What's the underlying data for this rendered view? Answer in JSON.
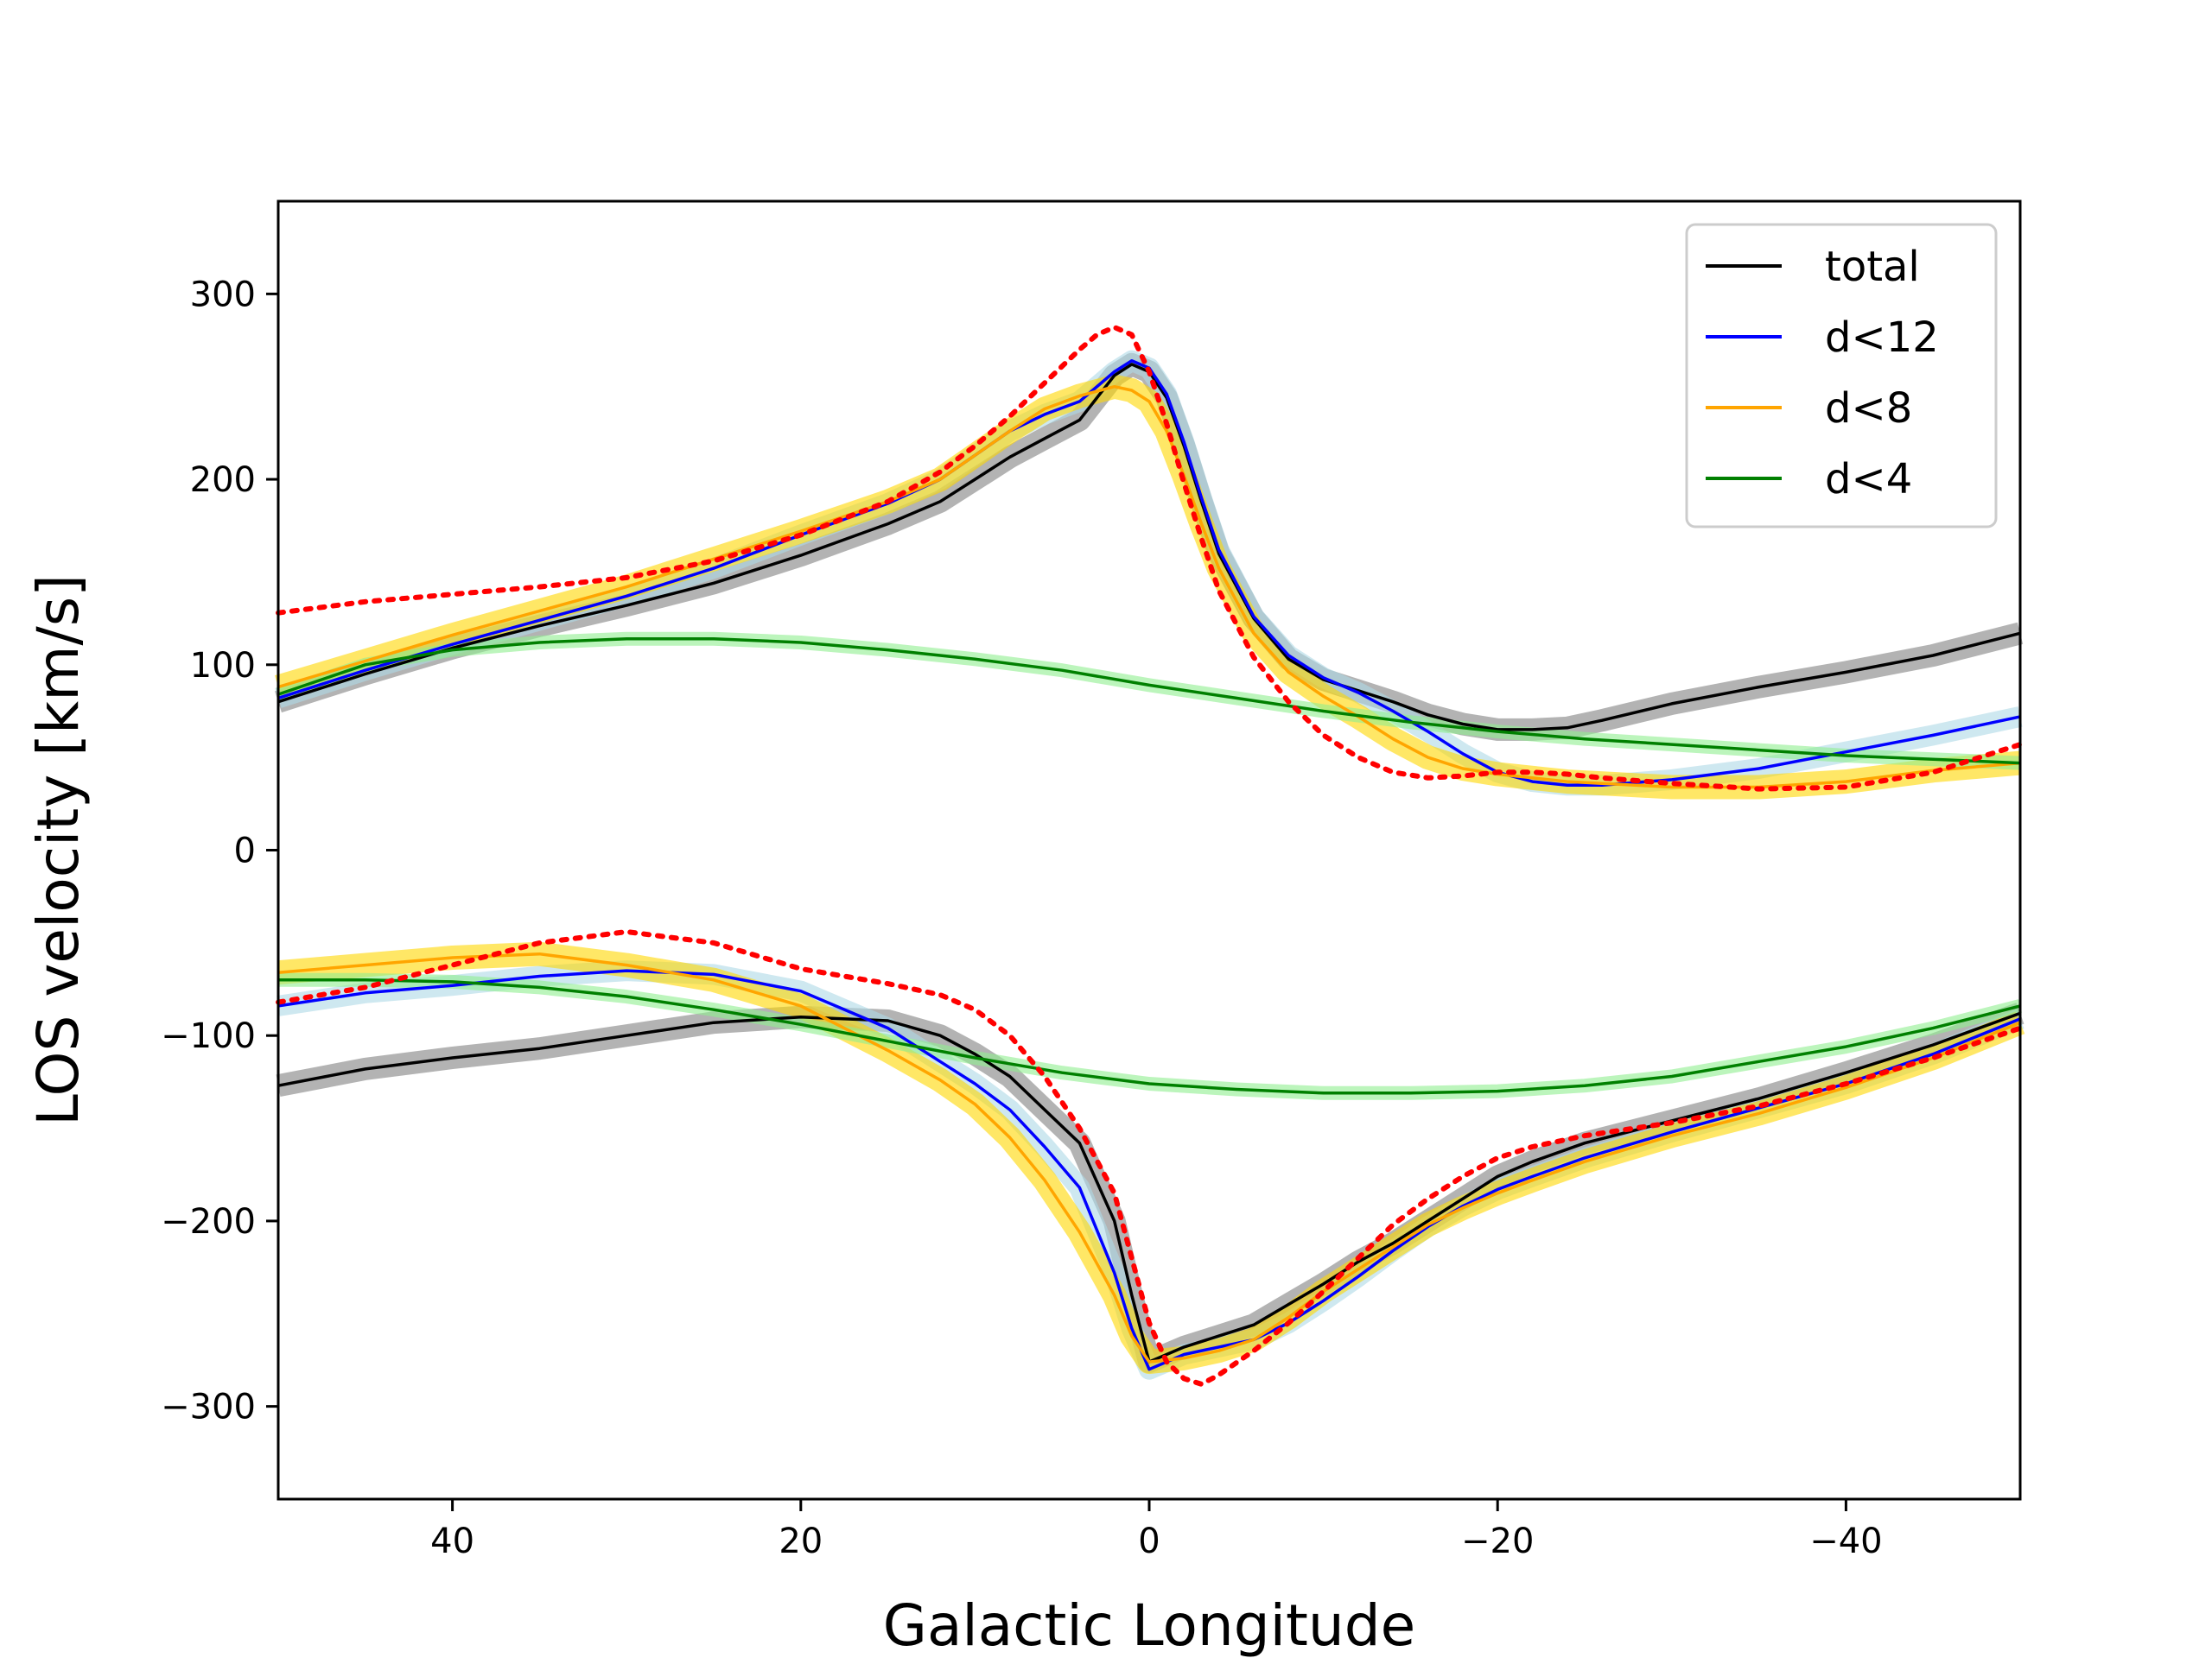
{
  "chart_data": {
    "type": "line",
    "title": "",
    "xlabel": "Galactic Longitude",
    "ylabel": "LOS velocity [km/s]",
    "xlim": [
      50,
      -50
    ],
    "ylim": [
      -350,
      350
    ],
    "x_ticks": [
      40,
      20,
      0,
      -20,
      -40
    ],
    "y_ticks": [
      300,
      200,
      100,
      0,
      -100,
      -200,
      -300
    ],
    "x_tick_labels": [
      "40",
      "20",
      "0",
      "−20",
      "−40"
    ],
    "y_tick_labels": [
      "300",
      "200",
      "100",
      "0",
      "−100",
      "−200",
      "−300"
    ],
    "grid": false,
    "legend_position": "top-right",
    "legend": [
      "total",
      "d<12",
      "d<8",
      "d<4"
    ],
    "series": [
      {
        "name": "total",
        "color": "#000000",
        "band_color": "#808080",
        "upper": {
          "x": [
            50,
            45,
            40,
            35,
            30,
            25,
            20,
            15,
            12,
            10,
            8,
            6,
            4,
            2,
            1,
            0,
            -1,
            -2,
            -3,
            -4,
            -6,
            -8,
            -10,
            -12,
            -14,
            -16,
            -18,
            -20,
            -22,
            -24,
            -26,
            -30,
            -35,
            -40,
            -45,
            -50
          ],
          "y": [
            80,
            95,
            109,
            121,
            132,
            144,
            159,
            176,
            188,
            200,
            212,
            222,
            232,
            256,
            262,
            258,
            244,
            218,
            188,
            160,
            125,
            103,
            92,
            86,
            80,
            73,
            68,
            65,
            65,
            66,
            70,
            79,
            88,
            96,
            105,
            117
          ]
        },
        "lower": {
          "x": [
            50,
            45,
            40,
            35,
            30,
            25,
            20,
            15,
            12,
            10,
            8,
            6,
            4,
            2,
            1,
            0,
            -2,
            -4,
            -6,
            -8,
            -10,
            -12,
            -14,
            -16,
            -18,
            -20,
            -22,
            -25,
            -30,
            -35,
            -40,
            -45,
            -50
          ],
          "y": [
            -127,
            -118,
            -112,
            -107,
            -100,
            -93,
            -90,
            -92,
            -100,
            -110,
            -122,
            -140,
            -158,
            -200,
            -240,
            -276,
            -268,
            -262,
            -256,
            -245,
            -234,
            -222,
            -212,
            -200,
            -188,
            -176,
            -168,
            -158,
            -146,
            -134,
            -120,
            -105,
            -88
          ]
        }
      },
      {
        "name": "d<12",
        "color": "#0000ff",
        "band_color": "#add8e6",
        "upper": {
          "x": [
            50,
            45,
            40,
            35,
            30,
            25,
            20,
            15,
            12,
            10,
            8,
            6,
            4,
            2,
            1,
            0,
            -1,
            -2,
            -3,
            -4,
            -6,
            -8,
            -10,
            -12,
            -14,
            -16,
            -18,
            -20,
            -22,
            -24,
            -26,
            -30,
            -35,
            -40,
            -45,
            -50
          ],
          "y": [
            82,
            97,
            111,
            124,
            137,
            152,
            170,
            187,
            200,
            213,
            226,
            235,
            242,
            258,
            264,
            260,
            246,
            220,
            190,
            162,
            126,
            105,
            93,
            85,
            75,
            64,
            52,
            42,
            37,
            35,
            35,
            38,
            44,
            53,
            62,
            72
          ]
        },
        "lower": {
          "x": [
            50,
            45,
            40,
            35,
            30,
            25,
            20,
            15,
            12,
            10,
            8,
            6,
            4,
            2,
            1,
            0,
            -2,
            -4,
            -6,
            -8,
            -10,
            -12,
            -14,
            -16,
            -18,
            -20,
            -22,
            -25,
            -30,
            -35,
            -40,
            -45,
            -50
          ],
          "y": [
            -84,
            -77,
            -73,
            -68,
            -65,
            -67,
            -76,
            -96,
            -114,
            -126,
            -140,
            -160,
            -182,
            -228,
            -258,
            -280,
            -272,
            -268,
            -264,
            -255,
            -243,
            -230,
            -216,
            -203,
            -192,
            -183,
            -176,
            -166,
            -152,
            -139,
            -126,
            -110,
            -91
          ]
        }
      },
      {
        "name": "d<8",
        "color": "#ffa500",
        "band_color": "#ffd700",
        "upper": {
          "x": [
            50,
            45,
            40,
            35,
            30,
            25,
            20,
            15,
            12,
            10,
            8,
            6,
            4,
            2,
            1,
            0,
            -1,
            -2,
            -3,
            -4,
            -6,
            -8,
            -10,
            -12,
            -14,
            -16,
            -18,
            -20,
            -22,
            -24,
            -26,
            -30,
            -35,
            -40,
            -45,
            -50
          ],
          "y": [
            88,
            102,
            116,
            129,
            142,
            157,
            172,
            188,
            200,
            213,
            226,
            238,
            245,
            250,
            248,
            242,
            226,
            202,
            176,
            152,
            117,
            96,
            83,
            72,
            60,
            50,
            44,
            41,
            39,
            37,
            36,
            34,
            34,
            37,
            43,
            47
          ]
        },
        "lower": {
          "x": [
            50,
            45,
            40,
            35,
            30,
            25,
            20,
            15,
            12,
            10,
            8,
            6,
            4,
            2,
            1,
            0,
            -2,
            -4,
            -6,
            -8,
            -10,
            -12,
            -14,
            -16,
            -18,
            -20,
            -22,
            -25,
            -30,
            -35,
            -40,
            -45,
            -50
          ],
          "y": [
            -66,
            -62,
            -58,
            -56,
            -62,
            -70,
            -84,
            -108,
            -124,
            -137,
            -155,
            -178,
            -206,
            -240,
            -262,
            -276,
            -274,
            -270,
            -264,
            -252,
            -238,
            -226,
            -214,
            -202,
            -193,
            -185,
            -178,
            -168,
            -154,
            -142,
            -128,
            -112,
            -93
          ]
        }
      },
      {
        "name": "d<4",
        "color": "#008000",
        "band_color": "#90ee90",
        "upper": {
          "x": [
            50,
            45,
            40,
            35,
            30,
            25,
            20,
            15,
            10,
            5,
            0,
            -5,
            -10,
            -15,
            -20,
            -25,
            -30,
            -35,
            -40,
            -45,
            -50
          ],
          "y": [
            84,
            100,
            108,
            112,
            114,
            114,
            112,
            108,
            103,
            97,
            89,
            82,
            75,
            69,
            64,
            60,
            57,
            54,
            51,
            49,
            47
          ]
        },
        "lower": {
          "x": [
            50,
            45,
            40,
            35,
            30,
            25,
            20,
            15,
            10,
            5,
            0,
            -5,
            -10,
            -15,
            -20,
            -25,
            -30,
            -35,
            -40,
            -45,
            -50
          ],
          "y": [
            -70,
            -70,
            -71,
            -74,
            -79,
            -86,
            -94,
            -103,
            -112,
            -120,
            -126,
            -129,
            -131,
            -131,
            -130,
            -127,
            -122,
            -114,
            -106,
            -96,
            -84
          ]
        }
      },
      {
        "name": "",
        "color": "#ff0000",
        "dashed": true,
        "upper": {
          "x": [
            50,
            45,
            40,
            35,
            30,
            25,
            20,
            15,
            12,
            10,
            8,
            6,
            4,
            3,
            2,
            1,
            0,
            -1,
            -2,
            -3,
            -4,
            -6,
            -8,
            -10,
            -12,
            -14,
            -16,
            -18,
            -20,
            -22,
            -24,
            -26,
            -30,
            -35,
            -40,
            -45,
            -50
          ],
          "y": [
            128,
            134,
            138,
            142,
            147,
            156,
            170,
            188,
            204,
            218,
            234,
            252,
            270,
            278,
            282,
            278,
            258,
            230,
            198,
            168,
            140,
            104,
            80,
            62,
            50,
            42,
            39,
            40,
            42,
            42,
            41,
            39,
            36,
            33,
            34,
            42,
            57
          ]
        },
        "lower": {
          "x": [
            50,
            45,
            40,
            35,
            30,
            25,
            20,
            15,
            12,
            10,
            8,
            6,
            4,
            2,
            1,
            0,
            -1,
            -2,
            -3,
            -4,
            -6,
            -8,
            -10,
            -12,
            -14,
            -16,
            -18,
            -20,
            -22,
            -25,
            -30,
            -35,
            -40,
            -45,
            -50
          ],
          "y": [
            -82,
            -74,
            -62,
            -50,
            -44,
            -50,
            -64,
            -72,
            -78,
            -86,
            -100,
            -122,
            -150,
            -185,
            -220,
            -255,
            -276,
            -285,
            -288,
            -283,
            -270,
            -255,
            -238,
            -220,
            -202,
            -188,
            -176,
            -166,
            -160,
            -154,
            -147,
            -138,
            -126,
            -112,
            -96
          ]
        }
      }
    ]
  }
}
